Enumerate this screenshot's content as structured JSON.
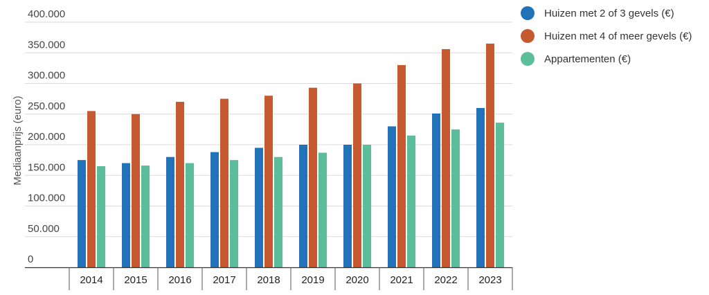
{
  "chart_data": {
    "type": "bar",
    "title": "",
    "xlabel": "",
    "ylabel": "Mediaanprijs (euro)",
    "ylim": [
      0,
      400000
    ],
    "y_tick_values": [
      0,
      50000,
      100000,
      150000,
      200000,
      250000,
      300000,
      350000,
      400000
    ],
    "y_tick_labels": [
      "0",
      "50.000",
      "100.000",
      "150.000",
      "200.000",
      "250.000",
      "300.000",
      "350.000",
      "400.000"
    ],
    "grid": true,
    "legend_position": "top-right",
    "categories": [
      "2014",
      "2015",
      "2016",
      "2017",
      "2018",
      "2019",
      "2020",
      "2021",
      "2022",
      "2023"
    ],
    "series": [
      {
        "name": "Huizen met 2 of 3 gevels (€)",
        "color": "#2272b8",
        "values": [
          175000,
          170000,
          180000,
          188000,
          195000,
          200000,
          200000,
          230000,
          251000,
          260000
        ]
      },
      {
        "name": "Huizen met 4 of meer gevels (€)",
        "color": "#c55a30",
        "values": [
          255000,
          250000,
          270000,
          275000,
          280000,
          293000,
          300000,
          330000,
          356000,
          365000
        ]
      },
      {
        "name": "Appartementen (€)",
        "color": "#5cbd9a",
        "values": [
          165000,
          166000,
          170000,
          175000,
          180000,
          187000,
          200000,
          215000,
          225000,
          236000
        ]
      }
    ]
  }
}
